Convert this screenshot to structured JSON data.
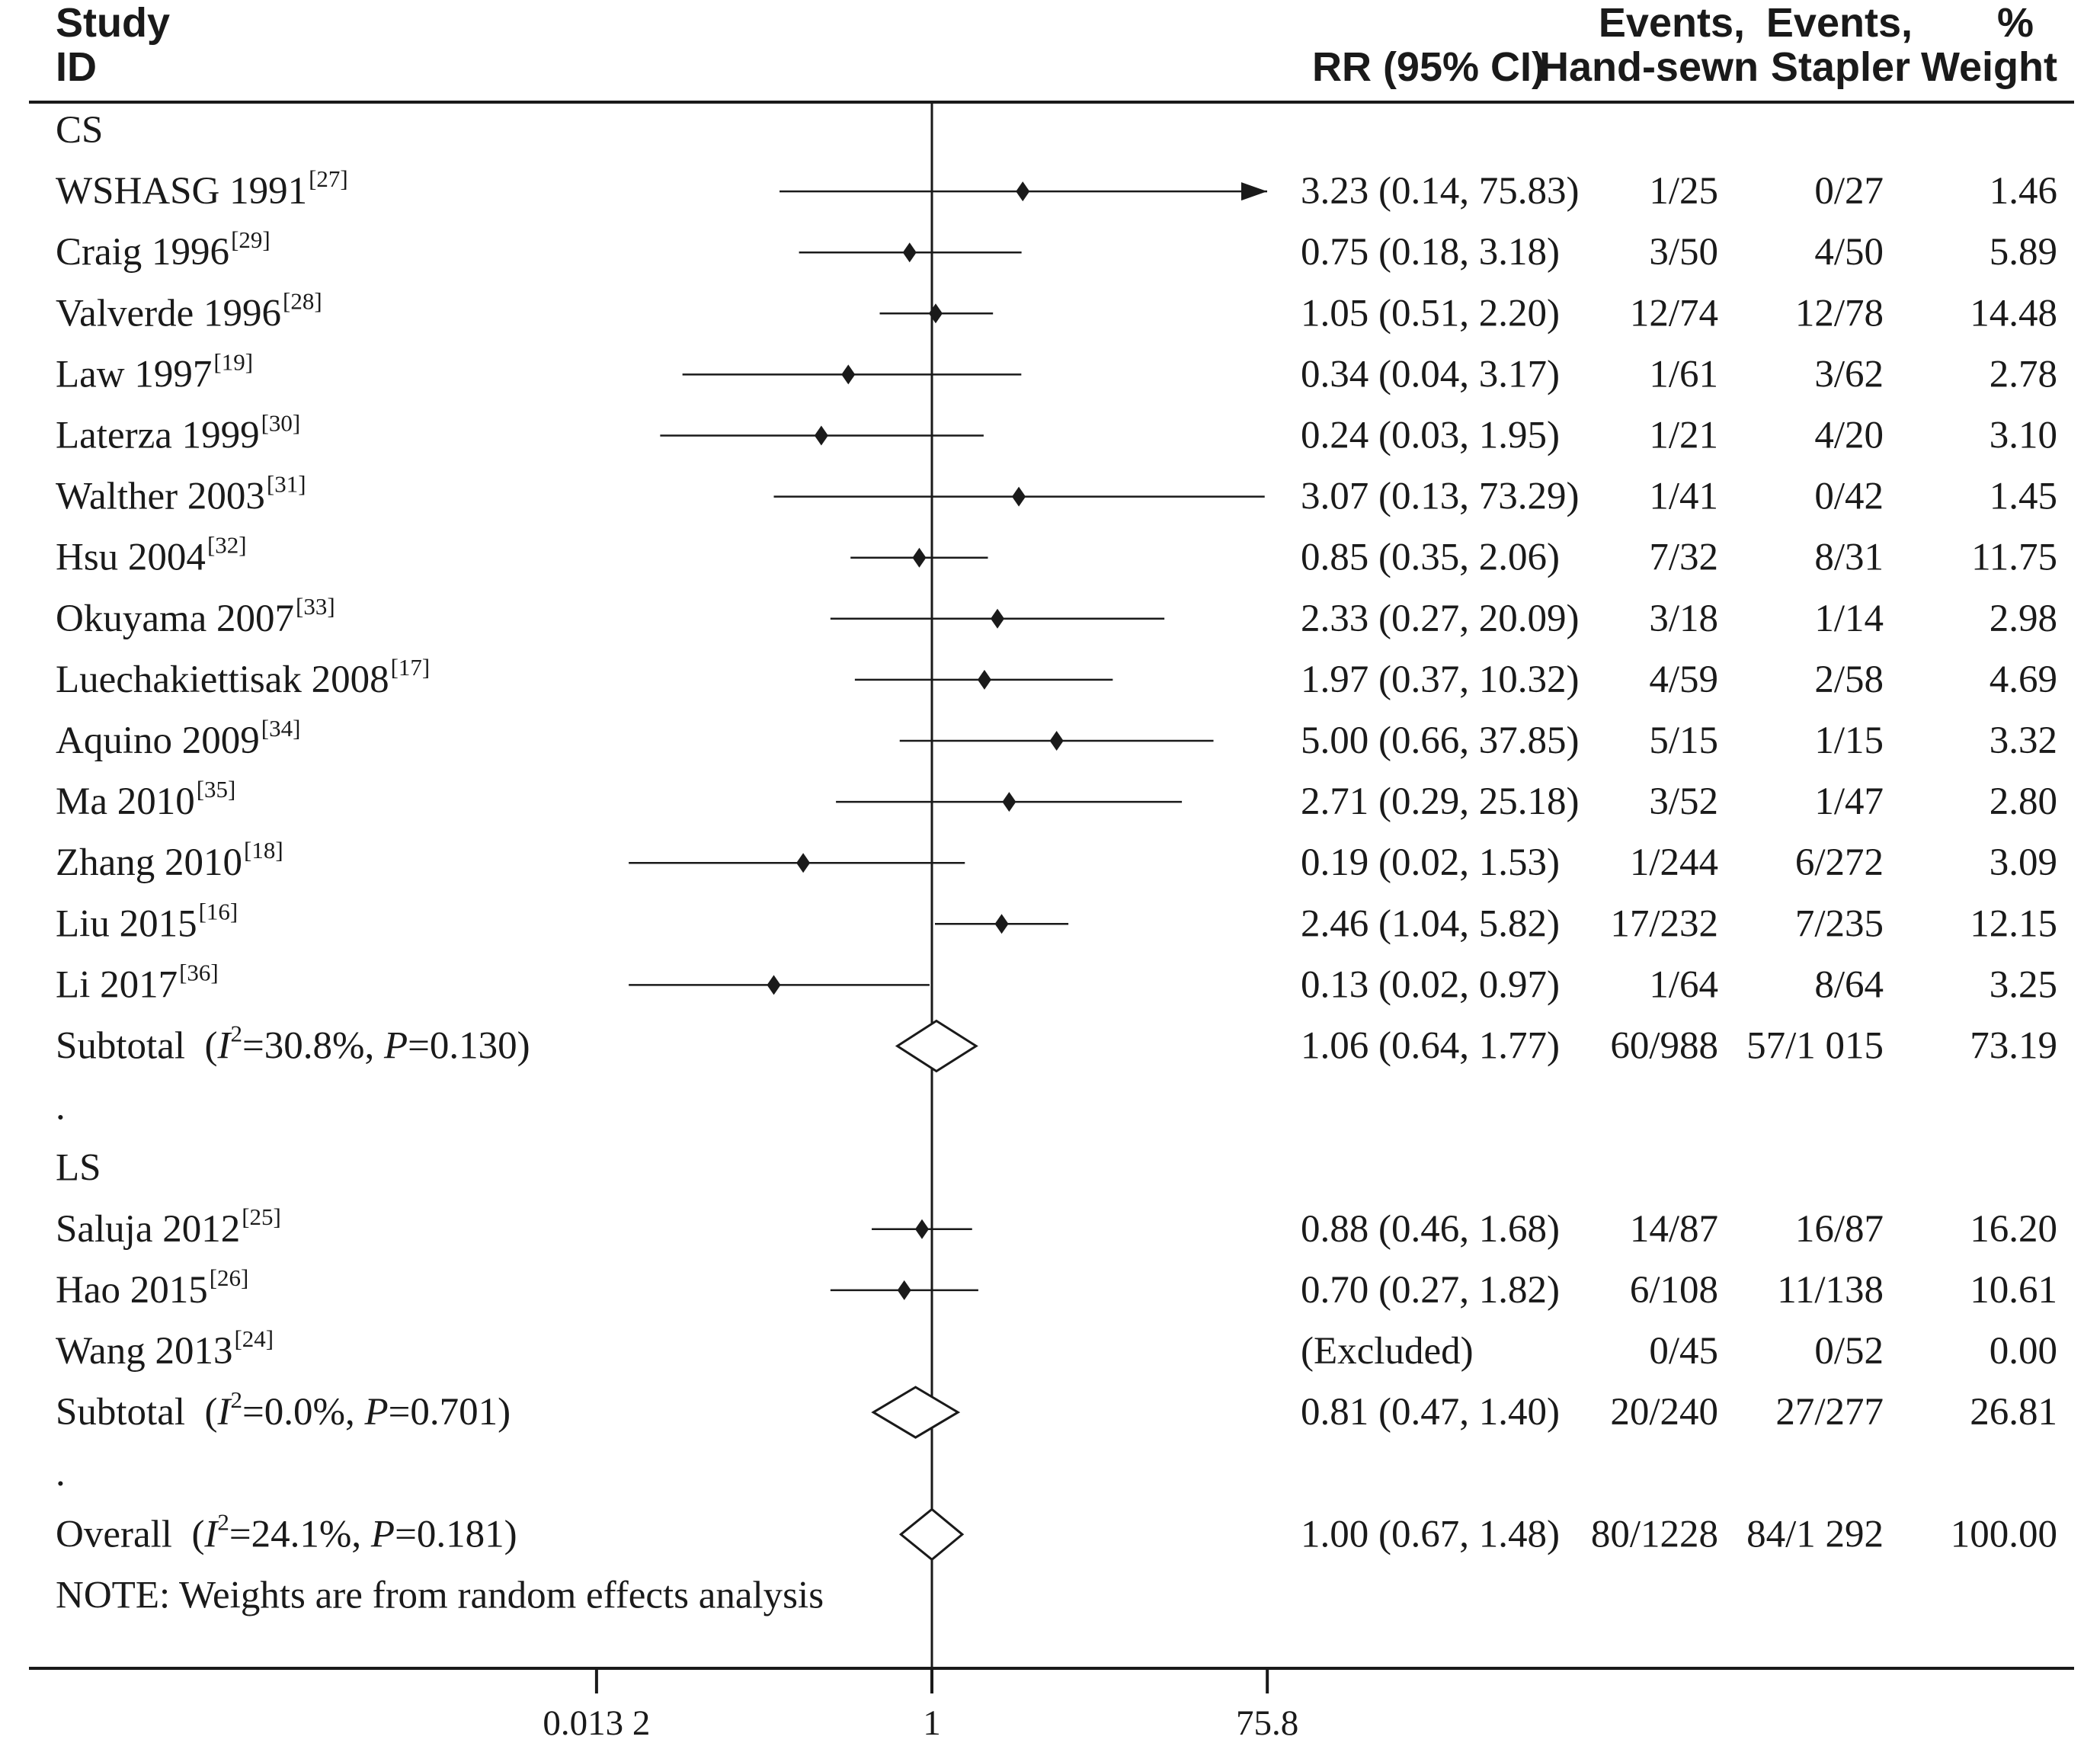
{
  "chart_data": {
    "type": "forest",
    "headers": {
      "study": [
        "Study",
        "ID"
      ],
      "rr": "RR (95% CI)",
      "events_hand": [
        "Events,",
        "Hand-sewn"
      ],
      "events_stapler": [
        "Events,",
        "Stapler"
      ],
      "weight": [
        "%",
        "Weight"
      ]
    },
    "x_scale": "log",
    "x_ticks": [
      {
        "value": 0.0132,
        "label": "0.013 2"
      },
      {
        "value": 1,
        "label": "1"
      },
      {
        "value": 75.8,
        "label": "75.8"
      }
    ],
    "rows": [
      {
        "type": "group",
        "label": "CS"
      },
      {
        "type": "study",
        "name": "WSHASG 1991",
        "ref": "[27]",
        "rr": 3.23,
        "lo": 0.14,
        "hi": 75.83,
        "ci_text": "3.23 (0.14, 75.83)",
        "events_hand": "1/25",
        "events_stapler": "0/27",
        "weight": "1.46"
      },
      {
        "type": "study",
        "name": "Craig 1996",
        "ref": "[29]",
        "rr": 0.75,
        "lo": 0.18,
        "hi": 3.18,
        "ci_text": "0.75 (0.18, 3.18)",
        "events_hand": "3/50",
        "events_stapler": "4/50",
        "weight": "5.89"
      },
      {
        "type": "study",
        "name": "Valverde 1996",
        "ref": "[28]",
        "rr": 1.05,
        "lo": 0.51,
        "hi": 2.2,
        "ci_text": "1.05 (0.51, 2.20)",
        "events_hand": "12/74",
        "events_stapler": "12/78",
        "weight": "14.48"
      },
      {
        "type": "study",
        "name": "Law 1997",
        "ref": "[19]",
        "rr": 0.34,
        "lo": 0.04,
        "hi": 3.17,
        "ci_text": "0.34 (0.04, 3.17)",
        "events_hand": "1/61",
        "events_stapler": "3/62",
        "weight": "2.78"
      },
      {
        "type": "study",
        "name": "Laterza 1999",
        "ref": "[30]",
        "rr": 0.24,
        "lo": 0.03,
        "hi": 1.95,
        "ci_text": "0.24 (0.03, 1.95)",
        "events_hand": "1/21",
        "events_stapler": "4/20",
        "weight": "3.10"
      },
      {
        "type": "study",
        "name": "Walther 2003",
        "ref": "[31]",
        "rr": 3.07,
        "lo": 0.13,
        "hi": 73.29,
        "ci_text": "3.07 (0.13, 73.29)",
        "events_hand": "1/41",
        "events_stapler": "0/42",
        "weight": "1.45"
      },
      {
        "type": "study",
        "name": "Hsu 2004",
        "ref": "[32]",
        "rr": 0.85,
        "lo": 0.35,
        "hi": 2.06,
        "ci_text": "0.85 (0.35, 2.06)",
        "events_hand": "7/32",
        "events_stapler": "8/31",
        "weight": "11.75"
      },
      {
        "type": "study",
        "name": "Okuyama 2007",
        "ref": "[33]",
        "rr": 2.33,
        "lo": 0.27,
        "hi": 20.09,
        "ci_text": "2.33 (0.27, 20.09)",
        "events_hand": "3/18",
        "events_stapler": "1/14",
        "weight": "2.98"
      },
      {
        "type": "study",
        "name": "Luechakiettisak 2008",
        "ref": "[17]",
        "rr": 1.97,
        "lo": 0.37,
        "hi": 10.32,
        "ci_text": "1.97 (0.37, 10.32)",
        "events_hand": "4/59",
        "events_stapler": "2/58",
        "weight": "4.69"
      },
      {
        "type": "study",
        "name": "Aquino 2009",
        "ref": "[34]",
        "rr": 5.0,
        "lo": 0.66,
        "hi": 37.85,
        "ci_text": "5.00 (0.66, 37.85)",
        "events_hand": "5/15",
        "events_stapler": "1/15",
        "weight": "3.32"
      },
      {
        "type": "study",
        "name": "Ma 2010",
        "ref": "[35]",
        "rr": 2.71,
        "lo": 0.29,
        "hi": 25.18,
        "ci_text": "2.71 (0.29, 25.18)",
        "events_hand": "3/52",
        "events_stapler": "1/47",
        "weight": "2.80"
      },
      {
        "type": "study",
        "name": "Zhang 2010",
        "ref": "[18]",
        "rr": 0.19,
        "lo": 0.02,
        "hi": 1.53,
        "ci_text": "0.19 (0.02, 1.53)",
        "events_hand": "1/244",
        "events_stapler": "6/272",
        "weight": "3.09"
      },
      {
        "type": "study",
        "name": "Liu 2015",
        "ref": "[16]",
        "rr": 2.46,
        "lo": 1.04,
        "hi": 5.82,
        "ci_text": "2.46 (1.04, 5.82)",
        "events_hand": "17/232",
        "events_stapler": "7/235",
        "weight": "12.15"
      },
      {
        "type": "study",
        "name": "Li 2017",
        "ref": "[36]",
        "rr": 0.13,
        "lo": 0.02,
        "hi": 0.97,
        "ci_text": "0.13 (0.02, 0.97)",
        "events_hand": "1/64",
        "events_stapler": "8/64",
        "weight": "3.25"
      },
      {
        "type": "subtotal",
        "prefix": "Subtotal",
        "i2": "30.8%",
        "p": "0.130",
        "rr": 1.06,
        "lo": 0.64,
        "hi": 1.77,
        "ci_text": "1.06 (0.64, 1.77)",
        "events_hand": "60/988",
        "events_stapler": "57/1 015",
        "weight": "73.19"
      },
      {
        "type": "dot",
        "label": "."
      },
      {
        "type": "group",
        "label": "LS"
      },
      {
        "type": "study",
        "name": "Saluja 2012",
        "ref": "[25]",
        "rr": 0.88,
        "lo": 0.46,
        "hi": 1.68,
        "ci_text": "0.88 (0.46, 1.68)",
        "events_hand": "14/87",
        "events_stapler": "16/87",
        "weight": "16.20"
      },
      {
        "type": "study",
        "name": "Hao 2015",
        "ref": "[26]",
        "rr": 0.7,
        "lo": 0.27,
        "hi": 1.82,
        "ci_text": "0.70 (0.27, 1.82)",
        "events_hand": "6/108",
        "events_stapler": "11/138",
        "weight": "10.61"
      },
      {
        "type": "study",
        "name": "Wang 2013",
        "ref": "[24]",
        "rr": null,
        "lo": null,
        "hi": null,
        "ci_text": "(Excluded)",
        "events_hand": "0/45",
        "events_stapler": "0/52",
        "weight": "0.00"
      },
      {
        "type": "subtotal",
        "prefix": "Subtotal",
        "i2": "0.0%",
        "p": "0.701",
        "rr": 0.81,
        "lo": 0.47,
        "hi": 1.4,
        "ci_text": "0.81 (0.47, 1.40)",
        "events_hand": "20/240",
        "events_stapler": "27/277",
        "weight": "26.81"
      },
      {
        "type": "dot",
        "label": "."
      },
      {
        "type": "overall",
        "prefix": "Overall",
        "i2": "24.1%",
        "p": "0.181",
        "rr": 1.0,
        "lo": 0.67,
        "hi": 1.48,
        "ci_text": "1.00 (0.67, 1.48)",
        "events_hand": "80/1228",
        "events_stapler": "84/1 292",
        "weight": "100.00"
      },
      {
        "type": "note",
        "label": "NOTE: Weights are from random effects analysis"
      }
    ]
  }
}
